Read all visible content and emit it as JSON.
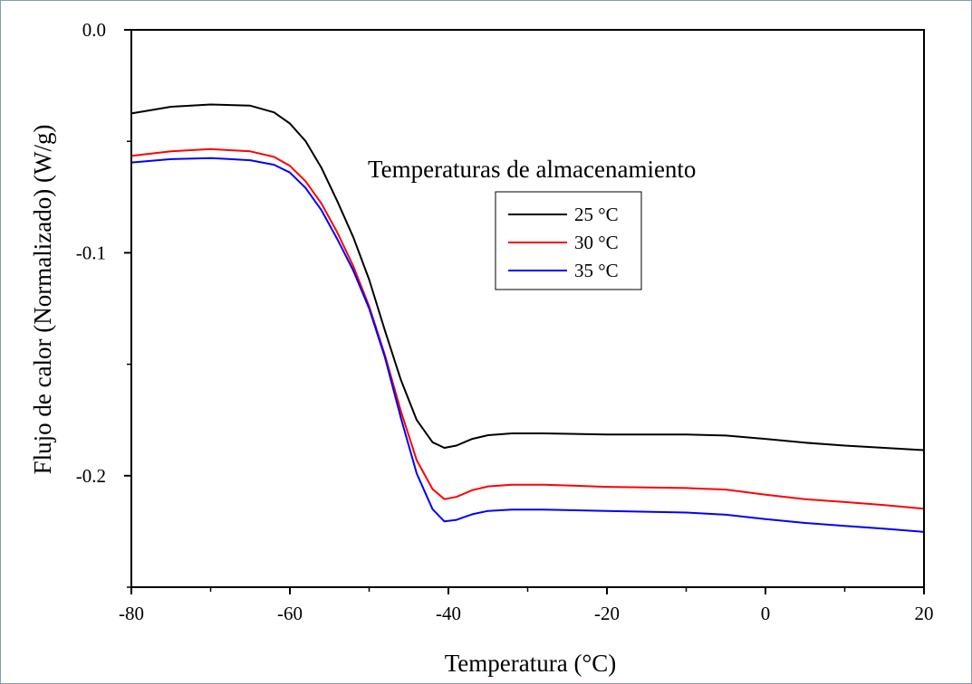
{
  "chart_data": {
    "type": "line",
    "xlabel": "Temperatura (°C)",
    "ylabel": "Flujo de calor (Normalizado) (W/g)",
    "xlim": [
      -80,
      20
    ],
    "ylim": [
      -0.25,
      0.0
    ],
    "x_ticks": [
      "-80",
      "-60",
      "-40",
      "-20",
      "0",
      "20"
    ],
    "y_ticks": [
      "0.0",
      "-0.1",
      "-0.2"
    ],
    "x_tick_values": [
      -80,
      -60,
      -40,
      -20,
      0,
      20
    ],
    "y_tick_values": [
      0.0,
      -0.1,
      -0.2
    ],
    "grid": false,
    "legend": {
      "title": "Temperaturas de almacenamiento",
      "placement": "center"
    },
    "series": [
      {
        "name": "25 °C",
        "color": "#000000",
        "points": [
          [
            -80,
            -0.0375
          ],
          [
            -75,
            -0.0345
          ],
          [
            -70,
            -0.0335
          ],
          [
            -65,
            -0.034
          ],
          [
            -62,
            -0.037
          ],
          [
            -60,
            -0.042
          ],
          [
            -58,
            -0.05
          ],
          [
            -56,
            -0.062
          ],
          [
            -54,
            -0.077
          ],
          [
            -52,
            -0.093
          ],
          [
            -50,
            -0.112
          ],
          [
            -48,
            -0.135
          ],
          [
            -46,
            -0.157
          ],
          [
            -44,
            -0.175
          ],
          [
            -42,
            -0.185
          ],
          [
            -40.5,
            -0.1875
          ],
          [
            -39,
            -0.1865
          ],
          [
            -37,
            -0.1835
          ],
          [
            -35,
            -0.1818
          ],
          [
            -32,
            -0.181
          ],
          [
            -28,
            -0.181
          ],
          [
            -20,
            -0.1815
          ],
          [
            -10,
            -0.1815
          ],
          [
            -5,
            -0.182
          ],
          [
            0,
            -0.1835
          ],
          [
            5,
            -0.1852
          ],
          [
            10,
            -0.1865
          ],
          [
            15,
            -0.1875
          ],
          [
            20,
            -0.1885
          ]
        ]
      },
      {
        "name": "30 °C",
        "color": "#ff0000",
        "points": [
          [
            -80,
            -0.0565
          ],
          [
            -75,
            -0.0545
          ],
          [
            -70,
            -0.0535
          ],
          [
            -65,
            -0.0545
          ],
          [
            -62,
            -0.057
          ],
          [
            -60,
            -0.061
          ],
          [
            -58,
            -0.068
          ],
          [
            -56,
            -0.078
          ],
          [
            -54,
            -0.091
          ],
          [
            -52,
            -0.106
          ],
          [
            -50,
            -0.124
          ],
          [
            -48,
            -0.146
          ],
          [
            -46,
            -0.171
          ],
          [
            -44,
            -0.193
          ],
          [
            -42,
            -0.206
          ],
          [
            -40.5,
            -0.2105
          ],
          [
            -39,
            -0.2095
          ],
          [
            -37,
            -0.2065
          ],
          [
            -35,
            -0.2048
          ],
          [
            -32,
            -0.204
          ],
          [
            -28,
            -0.204
          ],
          [
            -20,
            -0.205
          ],
          [
            -10,
            -0.2055
          ],
          [
            -5,
            -0.2062
          ],
          [
            0,
            -0.2085
          ],
          [
            5,
            -0.2105
          ],
          [
            10,
            -0.2118
          ],
          [
            15,
            -0.2132
          ],
          [
            20,
            -0.2148
          ]
        ]
      },
      {
        "name": "35 °C",
        "color": "#0000ff",
        "points": [
          [
            -80,
            -0.0595
          ],
          [
            -75,
            -0.058
          ],
          [
            -70,
            -0.0575
          ],
          [
            -65,
            -0.0585
          ],
          [
            -62,
            -0.0605
          ],
          [
            -60,
            -0.064
          ],
          [
            -58,
            -0.071
          ],
          [
            -56,
            -0.081
          ],
          [
            -54,
            -0.094
          ],
          [
            -52,
            -0.108
          ],
          [
            -50,
            -0.125
          ],
          [
            -48,
            -0.147
          ],
          [
            -46,
            -0.174
          ],
          [
            -44,
            -0.199
          ],
          [
            -42,
            -0.215
          ],
          [
            -40.5,
            -0.2205
          ],
          [
            -39,
            -0.2198
          ],
          [
            -37,
            -0.2173
          ],
          [
            -35,
            -0.2158
          ],
          [
            -32,
            -0.2152
          ],
          [
            -28,
            -0.2152
          ],
          [
            -20,
            -0.2158
          ],
          [
            -10,
            -0.2165
          ],
          [
            -5,
            -0.2175
          ],
          [
            0,
            -0.2195
          ],
          [
            5,
            -0.2212
          ],
          [
            10,
            -0.2225
          ],
          [
            15,
            -0.2238
          ],
          [
            20,
            -0.2252
          ]
        ]
      }
    ]
  }
}
